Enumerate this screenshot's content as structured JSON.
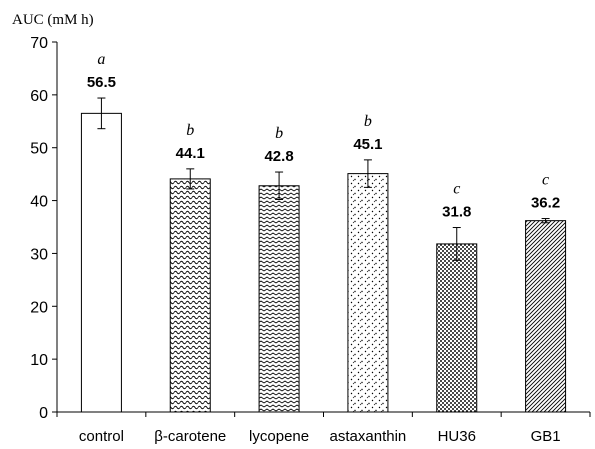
{
  "chart_data": {
    "type": "bar",
    "title": "",
    "ylabel": "AUC (mM h)",
    "xlabel": "",
    "ylim": [
      0,
      70
    ],
    "yticks": [
      0,
      10,
      20,
      30,
      40,
      50,
      60,
      70
    ],
    "grid": false,
    "categories": [
      "control",
      "β-carotene",
      "lycopene",
      "astaxanthin",
      "HU36",
      "GB1"
    ],
    "values": [
      56.5,
      44.1,
      42.8,
      45.1,
      31.8,
      36.2
    ],
    "value_labels": [
      "56.5",
      "44.1",
      "42.8",
      "45.1",
      "31.8",
      "36.2"
    ],
    "errors": [
      2.9,
      1.9,
      2.6,
      2.6,
      3.1,
      0.4
    ],
    "significance": [
      "a",
      "b",
      "b",
      "b",
      "c",
      "c"
    ],
    "fill_patterns": [
      "white",
      "wave",
      "zigzag",
      "dots-sparse",
      "dots-dense",
      "diagonal"
    ]
  }
}
